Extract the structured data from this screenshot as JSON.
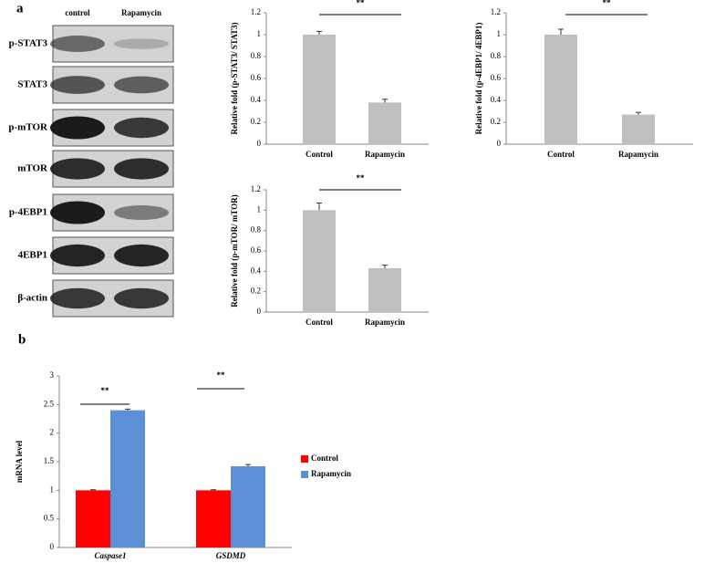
{
  "figure": {
    "panel_labels": [
      "a",
      "b"
    ]
  },
  "blot": {
    "columns": [
      "control",
      "Rapamycin"
    ],
    "rows": [
      "p-STAT3",
      "STAT3",
      "p-mTOR",
      "mTOR",
      "p-4EBP1",
      "4EBP1",
      "β-actin"
    ]
  },
  "chart_data": [
    {
      "type": "bar",
      "ylabel": "Relative fold (p-STAT3/ STAT3)",
      "categories": [
        "Control",
        "Rapamycin"
      ],
      "values": [
        1,
        0.38
      ],
      "errors": [
        0.03,
        0.03
      ],
      "color": "#bfbfbf",
      "ylim": [
        0,
        1.2
      ],
      "yticks": [
        0,
        0.2,
        0.4,
        0.6,
        0.8,
        1,
        1.2
      ],
      "annotation": "**"
    },
    {
      "type": "bar",
      "ylabel": "Relative fold (p-4EBP1/ 4EBP1)",
      "categories": [
        "Control",
        "Rapamycin"
      ],
      "values": [
        1,
        0.27
      ],
      "errors": [
        0.05,
        0.02
      ],
      "color": "#bfbfbf",
      "ylim": [
        0,
        1.2
      ],
      "yticks": [
        0,
        0.2,
        0.4,
        0.6,
        0.8,
        1,
        1.2
      ],
      "annotation": "**"
    },
    {
      "type": "bar",
      "ylabel": "Relative fold (p-mTOR/ mTOR)",
      "categories": [
        "Control",
        "Rapamycin"
      ],
      "values": [
        1,
        0.43
      ],
      "errors": [
        0.07,
        0.03
      ],
      "color": "#bfbfbf",
      "ylim": [
        0,
        1.2
      ],
      "yticks": [
        0,
        0.2,
        0.4,
        0.6,
        0.8,
        1,
        1.2
      ],
      "annotation": "**"
    },
    {
      "type": "grouped-bar",
      "ylabel": "mRNA level",
      "categories": [
        "Caspase1",
        "GSDMD"
      ],
      "series": [
        {
          "name": "Control",
          "color": "#ff0000",
          "values": [
            1,
            1
          ],
          "errors": [
            0.01,
            0.01
          ]
        },
        {
          "name": "Rapamycin",
          "color": "#5b8fd6",
          "values": [
            2.4,
            1.42
          ],
          "errors": [
            0.02,
            0.03
          ]
        }
      ],
      "ylim": [
        0,
        3
      ],
      "yticks": [
        0,
        0.5,
        1,
        1.5,
        2,
        2.5,
        3
      ],
      "annotations": [
        "**",
        "**"
      ],
      "legend": "right"
    }
  ]
}
